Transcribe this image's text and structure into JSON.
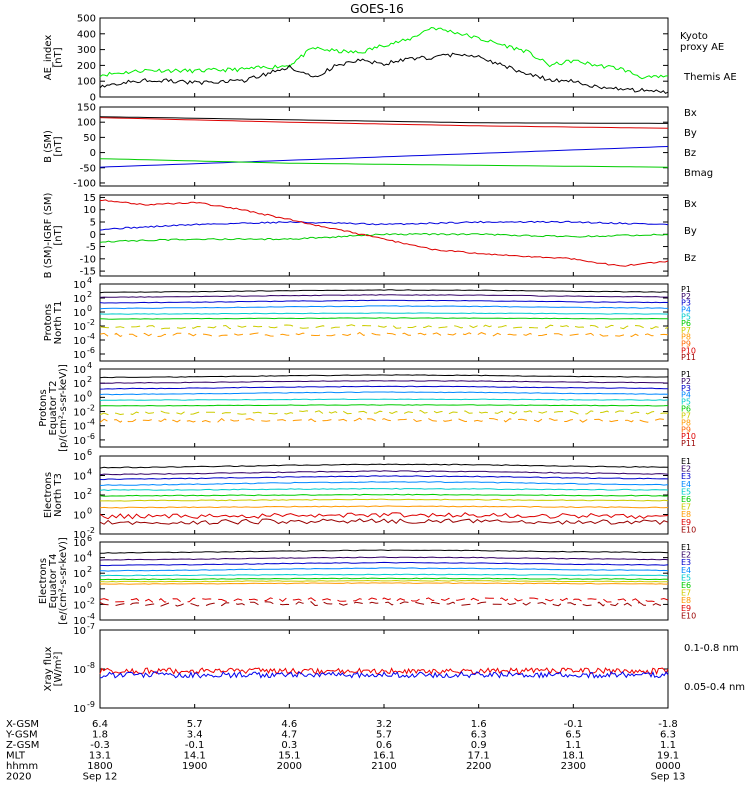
{
  "title": "GOES-16",
  "time_axis": {
    "ticks": [
      "1800",
      "1900",
      "2000",
      "2100",
      "2200",
      "2300",
      "0000"
    ],
    "start": "1800",
    "end": "0000",
    "date_left": "Sep 12",
    "date_right": "Sep 13"
  },
  "coord_table": {
    "rows": [
      {
        "label": "X-GSM",
        "values": [
          "6.4",
          "5.7",
          "4.6",
          "3.2",
          "1.6",
          "-0.1",
          "-1.8"
        ]
      },
      {
        "label": "Y-GSM",
        "values": [
          "1.8",
          "3.4",
          "4.7",
          "5.7",
          "6.3",
          "6.5",
          "6.3"
        ]
      },
      {
        "label": "Z-GSM",
        "values": [
          "-0.3",
          "-0.1",
          "0.3",
          "0.6",
          "0.9",
          "1.1",
          "1.1"
        ]
      },
      {
        "label": "MLT",
        "values": [
          "13.1",
          "14.1",
          "15.1",
          "16.1",
          "17.1",
          "18.1",
          "19.1"
        ]
      },
      {
        "label": "hhmm",
        "values": [
          "1800",
          "1900",
          "2000",
          "2100",
          "2200",
          "2300",
          "0000"
        ]
      },
      {
        "label": "2020",
        "values": [
          "Sep 12",
          "",
          "",
          "",
          "",
          "",
          "Sep 13"
        ]
      }
    ]
  },
  "chart_data": [
    {
      "type": "line",
      "ylabel": [
        "AE_index",
        "[nT]"
      ],
      "ylim": [
        0,
        500
      ],
      "yticks": [
        "0",
        "100",
        "200",
        "300",
        "400",
        "500"
      ],
      "series": [
        {
          "name": "Kyoto proxy AE",
          "color": "#00ee00",
          "x": [
            0,
            0.5,
            1,
            1.5,
            2,
            2.25,
            2.5,
            2.75,
            3,
            3.25,
            3.5,
            3.75,
            4,
            4.25,
            4.5,
            4.75,
            5,
            5.25,
            5.5,
            5.75,
            6
          ],
          "values": [
            140,
            170,
            165,
            175,
            200,
            310,
            290,
            280,
            330,
            360,
            440,
            410,
            370,
            330,
            290,
            200,
            230,
            200,
            180,
            120,
            130
          ]
        },
        {
          "name": "Themis AE",
          "color": "#000000",
          "x": [
            0,
            0.5,
            1,
            1.5,
            2,
            2.25,
            2.5,
            2.75,
            3,
            3.25,
            3.5,
            3.75,
            4,
            4.25,
            4.5,
            4.75,
            5,
            5.25,
            5.5,
            5.75,
            6
          ],
          "values": [
            70,
            110,
            90,
            100,
            190,
            120,
            200,
            230,
            210,
            240,
            250,
            270,
            250,
            200,
            150,
            110,
            100,
            60,
            50,
            40,
            30
          ]
        }
      ]
    },
    {
      "type": "line",
      "ylabel": [
        "B (SM)",
        "[nT]"
      ],
      "ylim": [
        -110,
        150
      ],
      "yticks": [
        "-100",
        "-50",
        "0",
        "50",
        "100",
        "150"
      ],
      "ytick_values": [
        -100,
        -50,
        0,
        50,
        100,
        150
      ],
      "series": [
        {
          "name": "Bx",
          "color": "#0000dd",
          "x": [
            0,
            6
          ],
          "values": [
            -48,
            20
          ]
        },
        {
          "name": "By",
          "color": "#00cc00",
          "x": [
            0,
            2,
            4,
            6
          ],
          "values": [
            -20,
            -35,
            -42,
            -48
          ]
        },
        {
          "name": "Bz",
          "color": "#dd0000",
          "x": [
            0,
            2,
            4,
            6
          ],
          "values": [
            115,
            100,
            88,
            80
          ]
        },
        {
          "name": "Bmag",
          "color": "#000000",
          "x": [
            0,
            2,
            4,
            6
          ],
          "values": [
            118,
            108,
            98,
            96
          ]
        }
      ]
    },
    {
      "type": "line",
      "ylabel": [
        "B (SM)-IGRF (SM)",
        "[nT]"
      ],
      "ylim": [
        -17,
        16
      ],
      "yticks": [
        "-15",
        "-10",
        "-5",
        "0",
        "5",
        "10",
        "15"
      ],
      "ytick_values": [
        -15,
        -10,
        -5,
        0,
        5,
        10,
        15
      ],
      "series": [
        {
          "name": "Bx",
          "color": "#0000dd",
          "x": [
            0,
            1,
            2,
            3,
            4,
            5,
            6
          ],
          "values": [
            2,
            4,
            5,
            4,
            5,
            5,
            4
          ]
        },
        {
          "name": "By",
          "color": "#00cc00",
          "x": [
            0,
            1,
            2,
            2.5,
            3,
            4,
            5,
            6
          ],
          "values": [
            -3,
            -2,
            -2,
            -1,
            0,
            0,
            -1,
            0
          ]
        },
        {
          "name": "Bz",
          "color": "#dd0000",
          "x": [
            0,
            0.5,
            1,
            1.5,
            2,
            2.5,
            3,
            3.5,
            4,
            4.5,
            5,
            5.5,
            6
          ],
          "values": [
            14,
            12,
            13,
            10,
            6,
            2,
            -2,
            -6,
            -8,
            -9,
            -10,
            -13,
            -11
          ]
        }
      ]
    },
    {
      "type": "line",
      "log_scale": true,
      "ylabel": [
        "Protons",
        "North T1"
      ],
      "ylim_log": [
        -7,
        4
      ],
      "yticks_exp": [
        -6,
        -4,
        -2,
        0,
        2,
        4
      ],
      "channels": [
        "P1",
        "P2",
        "P3",
        "P4",
        "P5",
        "P6",
        "P7",
        "P8",
        "P9",
        "P10",
        "P11"
      ],
      "channel_colors": [
        "#000000",
        "#330066",
        "#0000cc",
        "#0088ff",
        "#00cccc",
        "#00cc00",
        "#cccc00",
        "#ff9900",
        "#ff6600",
        "#dd0000",
        "#990000"
      ],
      "log_values": [
        2.8,
        2.1,
        1.3,
        0.5,
        -0.3,
        -1.0,
        -2.2,
        -3.3
      ]
    },
    {
      "type": "line",
      "log_scale": true,
      "ylabel": [
        "Protons",
        "Equator T2",
        "[p/(cm²-s-sr-keV)]"
      ],
      "ylim_log": [
        -7,
        4
      ],
      "yticks_exp": [
        -6,
        -4,
        -2,
        0,
        2,
        4
      ],
      "channels": [
        "P1",
        "P2",
        "P3",
        "P4",
        "P5",
        "P6",
        "P7",
        "P8",
        "P9",
        "P10",
        "P11"
      ],
      "channel_colors": [
        "#000000",
        "#330066",
        "#0000cc",
        "#0088ff",
        "#00cccc",
        "#00cc00",
        "#cccc00",
        "#ff9900",
        "#ff6600",
        "#dd0000",
        "#990000"
      ],
      "log_values": [
        2.8,
        2.0,
        1.2,
        0.4,
        -0.4,
        -1.2,
        -2.2,
        -3.3
      ]
    },
    {
      "type": "line",
      "log_scale": true,
      "ylabel": [
        "Electrons",
        "North T3"
      ],
      "ylim_log": [
        -2,
        6
      ],
      "yticks_exp": [
        -2,
        0,
        2,
        4,
        6
      ],
      "channels": [
        "E1",
        "E2",
        "E3",
        "E4",
        "E5",
        "E6",
        "E7",
        "E8",
        "E9",
        "E10"
      ],
      "channel_colors": [
        "#000000",
        "#330066",
        "#0000cc",
        "#0088ff",
        "#00cccc",
        "#00cc00",
        "#cccc00",
        "#ff9900",
        "#dd0000",
        "#990000"
      ],
      "log_values": [
        4.8,
        4.1,
        3.6,
        3.0,
        2.5,
        1.9,
        1.4,
        0.7,
        -0.2,
        -0.8
      ]
    },
    {
      "type": "line",
      "log_scale": true,
      "ylabel": [
        "Electrons",
        "Equator T4",
        "[e/(cm²-s-sr-keV)]"
      ],
      "ylim_log": [
        -4,
        6
      ],
      "yticks_exp": [
        -4,
        -2,
        0,
        2,
        4,
        6
      ],
      "channels": [
        "E1",
        "E2",
        "E3",
        "E4",
        "E5",
        "E6",
        "E7",
        "E8",
        "E9",
        "E10"
      ],
      "channel_colors": [
        "#000000",
        "#330066",
        "#0000cc",
        "#0088ff",
        "#00cccc",
        "#00cc00",
        "#cccc00",
        "#ff9900",
        "#dd0000",
        "#990000"
      ],
      "log_values": [
        4.6,
        3.7,
        3.0,
        2.3,
        1.7,
        1.2,
        0.9,
        0.6,
        -1.5,
        -2.0
      ]
    },
    {
      "type": "line",
      "log_scale": true,
      "ylabel": [
        "Xray flux",
        "[W/m²]"
      ],
      "ylim_log": [
        -9,
        -7
      ],
      "yticks_exp": [
        -9,
        -8,
        -7
      ],
      "series": [
        {
          "name": "0.1-0.8 nm",
          "color": "#ee0000",
          "log_level": -8.05
        },
        {
          "name": "0.05-0.4 nm",
          "color": "#0000ee",
          "log_level": -8.15
        }
      ]
    }
  ]
}
